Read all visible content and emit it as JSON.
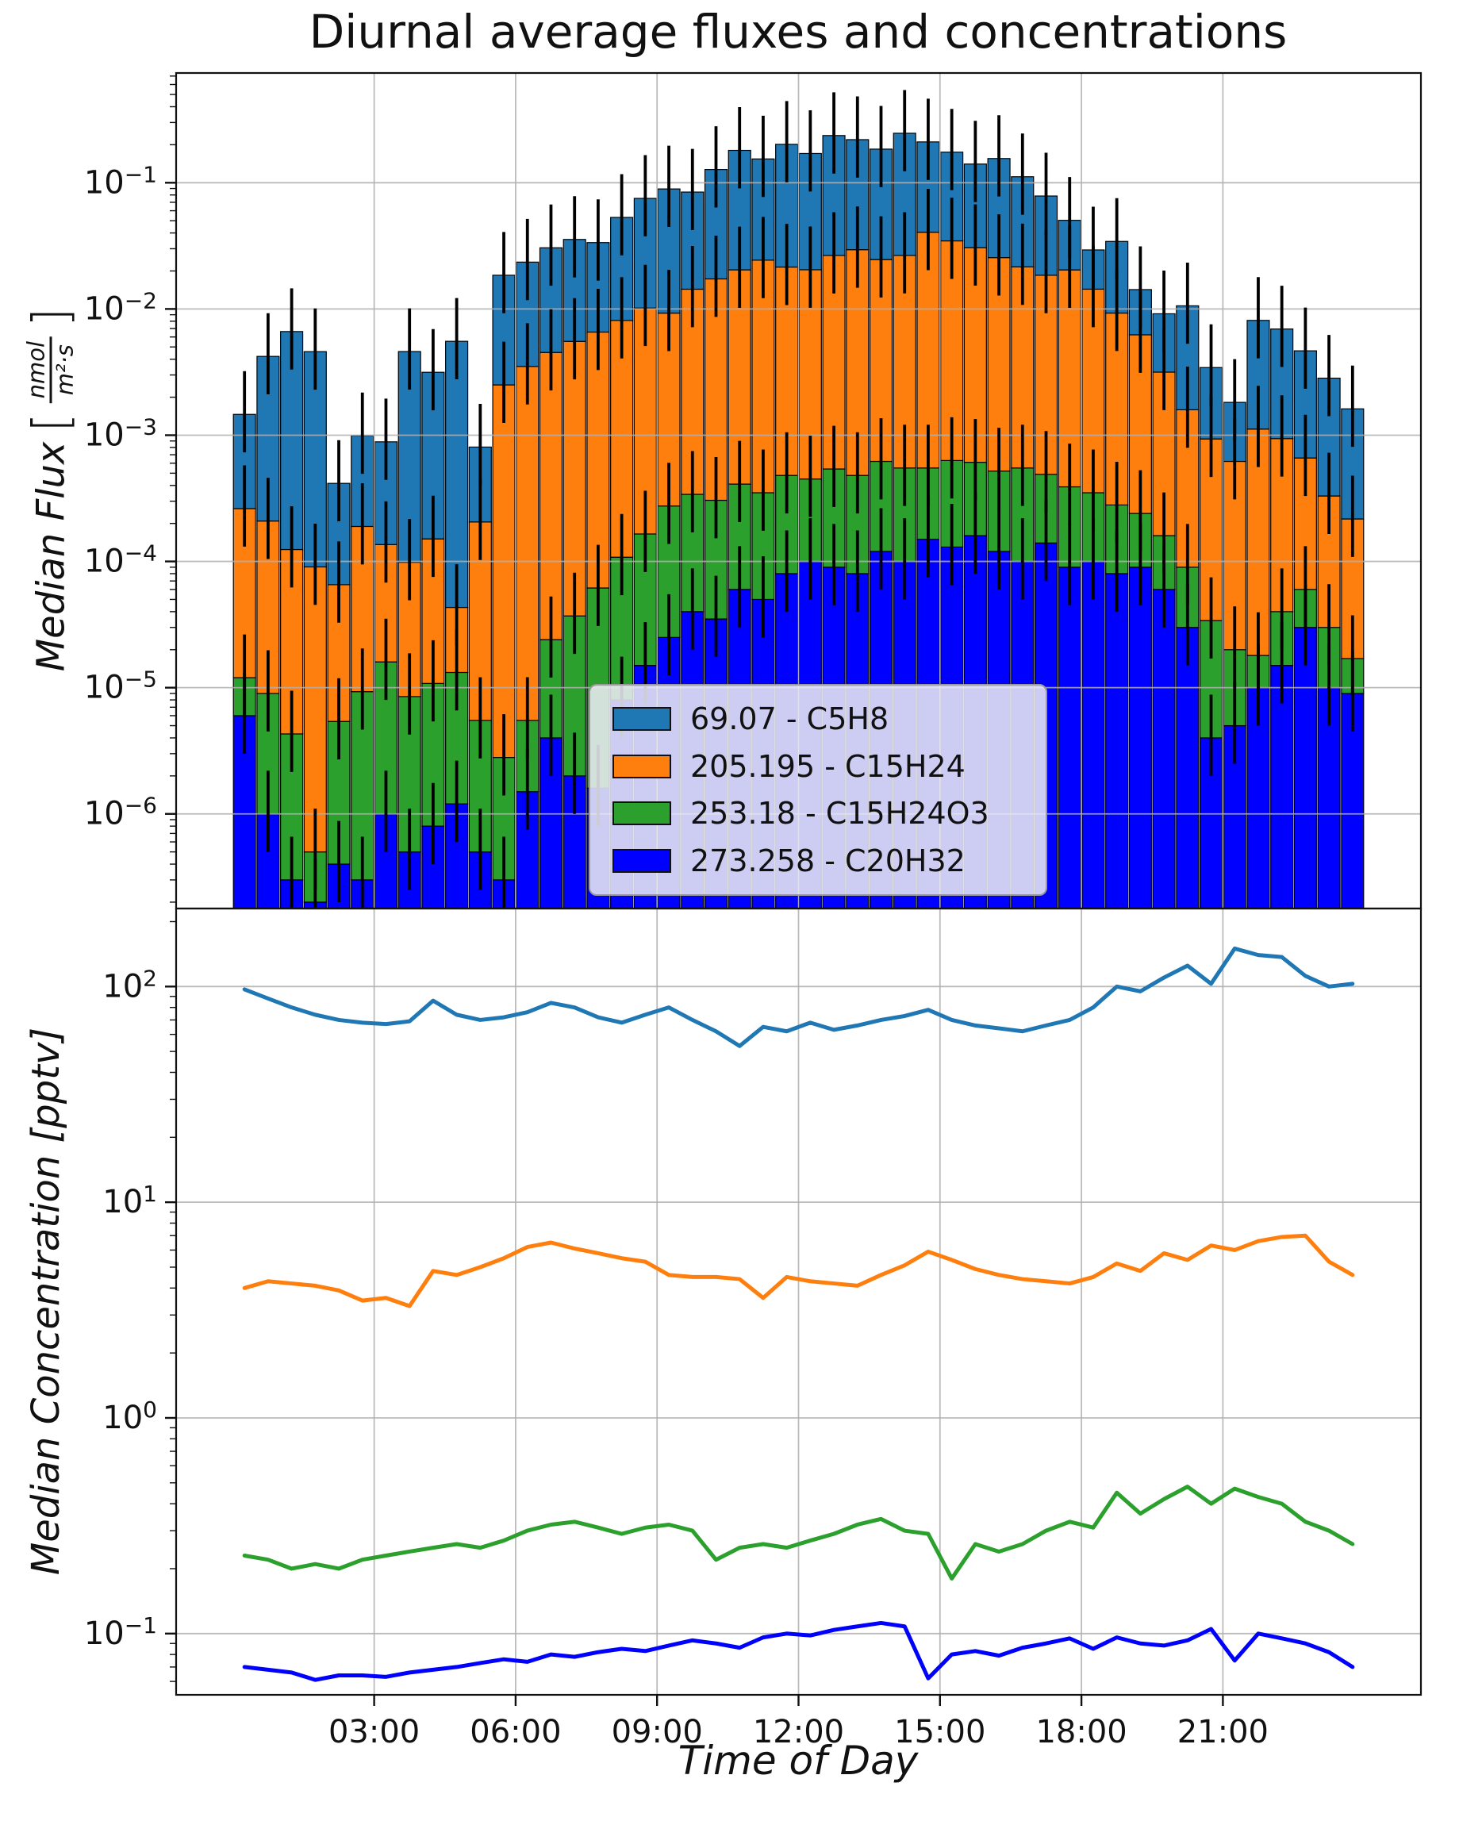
{
  "title": "Diurnal average fluxes and concentrations",
  "axes": {
    "flux_ylabel_prefix": "Median Flux",
    "bracket_open": "[",
    "bracket_close": "]",
    "flux_unit_numerator": "nmol",
    "flux_unit_denominator": "m²·s",
    "conc_ylabel": "Median Concentration [pptv]",
    "xlabel": "Time of Day"
  },
  "legend": {
    "items": [
      {
        "label": "69.07 - C5H8",
        "color": "#1f77b4"
      },
      {
        "label": "205.195 - C15H24",
        "color": "#ff7f0e"
      },
      {
        "label": "253.18 - C15H24O3",
        "color": "#2ca02c"
      },
      {
        "label": "273.258 - C20H32",
        "color": "#0000ff"
      }
    ]
  },
  "chart_data": [
    {
      "type": "bar",
      "stacked": true,
      "y_scale": "log",
      "grid": true,
      "title": "",
      "xlabel": "",
      "ylabel": "Median Flux [nmol/(m²·s)]",
      "ylim": [
        1.78e-07,
        0.74
      ],
      "xlim": [
        -1.2,
        25.2
      ],
      "yticks_exponents": [
        -1,
        -2,
        -3,
        -4,
        -5,
        -6
      ],
      "error_bar_factor": {
        "low": 2.0,
        "high": 2.2
      },
      "stack_order_bottom_to_top": [
        3,
        2,
        1,
        0
      ],
      "x_hours": [
        0.25,
        0.75,
        1.25,
        1.75,
        2.25,
        2.75,
        3.25,
        3.75,
        4.25,
        4.75,
        5.25,
        5.75,
        6.25,
        6.75,
        7.25,
        7.75,
        8.25,
        8.75,
        9.25,
        9.75,
        10.25,
        10.75,
        11.25,
        11.75,
        12.25,
        12.75,
        13.25,
        13.75,
        14.25,
        14.75,
        15.25,
        15.75,
        16.25,
        16.75,
        17.25,
        17.75,
        18.25,
        18.75,
        19.25,
        19.75,
        20.25,
        20.75,
        21.25,
        21.75,
        22.25,
        22.75,
        23.25,
        23.75
      ],
      "series": [
        {
          "name": "69.07 - C5H8",
          "color": "#1f77b4",
          "values": [
            0.0012,
            0.004,
            0.0065,
            0.0045,
            0.00035,
            0.0008,
            0.00075,
            0.0045,
            0.003,
            0.0055,
            0.0006,
            0.016,
            0.02,
            0.026,
            0.03,
            0.027,
            0.045,
            0.065,
            0.08,
            0.07,
            0.11,
            0.16,
            0.13,
            0.18,
            0.15,
            0.21,
            0.19,
            0.16,
            0.22,
            0.17,
            0.14,
            0.11,
            0.13,
            0.09,
            0.06,
            0.03,
            0.015,
            0.025,
            0.008,
            0.006,
            0.009,
            0.0025,
            0.0012,
            0.007,
            0.006,
            0.004,
            0.0025,
            0.0014
          ]
        },
        {
          "name": "205.195 - C15H24",
          "color": "#ff7f0e",
          "values": [
            0.00025,
            0.0002,
            0.00012,
            9e-05,
            6e-05,
            0.00018,
            0.00012,
            9e-05,
            0.00014,
            3e-05,
            0.0002,
            0.0025,
            0.0035,
            0.0045,
            0.0055,
            0.0065,
            0.008,
            0.01,
            0.009,
            0.014,
            0.017,
            0.02,
            0.024,
            0.021,
            0.02,
            0.026,
            0.029,
            0.024,
            0.026,
            0.04,
            0.034,
            0.03,
            0.025,
            0.021,
            0.018,
            0.02,
            0.014,
            0.009,
            0.006,
            0.003,
            0.0015,
            0.0009,
            0.0006,
            0.0011,
            0.0009,
            0.0006,
            0.0003,
            0.0002
          ]
        },
        {
          "name": "253.18 - C15H24O3",
          "color": "#2ca02c",
          "values": [
            6e-06,
            8e-06,
            4e-06,
            3e-07,
            5e-06,
            9e-06,
            1.5e-05,
            8e-06,
            1e-05,
            1.2e-05,
            5e-06,
            2.5e-06,
            4e-06,
            2e-05,
            3.5e-05,
            6e-05,
            0.0001,
            0.00015,
            0.00025,
            0.0003,
            0.00027,
            0.00035,
            0.0003,
            0.0004,
            0.00035,
            0.00045,
            0.0004,
            0.0005,
            0.00045,
            0.0004,
            0.0005,
            0.00045,
            0.0004,
            0.00045,
            0.00035,
            0.0003,
            0.00025,
            0.0002,
            0.00015,
            0.0001,
            6e-05,
            3e-05,
            1.5e-05,
            8e-06,
            2.5e-05,
            3e-05,
            2e-05,
            8e-06
          ]
        },
        {
          "name": "273.258 - C20H32",
          "color": "#0000ff",
          "values": [
            6e-06,
            1e-06,
            3e-07,
            2e-07,
            4e-07,
            3e-07,
            1e-06,
            5e-07,
            8e-07,
            1.2e-06,
            5e-07,
            3e-07,
            1.5e-06,
            4e-06,
            2e-06,
            1.6e-06,
            8e-06,
            1.5e-05,
            2.5e-05,
            4e-05,
            3.5e-05,
            6e-05,
            5e-05,
            8e-05,
            0.0001,
            9e-05,
            8e-05,
            0.00012,
            0.0001,
            0.00015,
            0.00013,
            0.00016,
            0.00012,
            0.0001,
            0.00014,
            9e-05,
            0.0001,
            8e-05,
            9e-05,
            6e-05,
            3e-05,
            4e-06,
            5e-06,
            1e-05,
            1.5e-05,
            3e-05,
            1e-05,
            9e-06
          ]
        }
      ]
    },
    {
      "type": "line",
      "y_scale": "log",
      "grid": true,
      "title": "",
      "xlabel": "Time of Day",
      "ylabel": "Median Concentration [pptv]",
      "ylim": [
        0.052,
        230
      ],
      "xlim": [
        -1.2,
        25.2
      ],
      "yticks_exponents": [
        2,
        1,
        0,
        -1
      ],
      "xticks": {
        "hours": [
          3,
          6,
          9,
          12,
          15,
          18,
          21
        ],
        "labels": [
          "03:00",
          "06:00",
          "09:00",
          "12:00",
          "15:00",
          "18:00",
          "21:00"
        ]
      },
      "x_hours": [
        0.25,
        0.75,
        1.25,
        1.75,
        2.25,
        2.75,
        3.25,
        3.75,
        4.25,
        4.75,
        5.25,
        5.75,
        6.25,
        6.75,
        7.25,
        7.75,
        8.25,
        8.75,
        9.25,
        9.75,
        10.25,
        10.75,
        11.25,
        11.75,
        12.25,
        12.75,
        13.25,
        13.75,
        14.25,
        14.75,
        15.25,
        15.75,
        16.25,
        16.75,
        17.25,
        17.75,
        18.25,
        18.75,
        19.25,
        19.75,
        20.25,
        20.75,
        21.25,
        21.75,
        22.25,
        22.75,
        23.25,
        23.75
      ],
      "series": [
        {
          "name": "69.07 - C5H8",
          "color": "#1f77b4",
          "values": [
            97,
            88,
            80,
            74,
            70,
            68,
            67,
            69,
            86,
            74,
            70,
            72,
            76,
            84,
            80,
            72,
            68,
            74,
            80,
            70,
            62,
            53,
            65,
            62,
            68,
            63,
            66,
            70,
            73,
            78,
            70,
            66,
            64,
            62,
            66,
            70,
            80,
            100,
            95,
            110,
            125,
            103,
            150,
            140,
            137,
            112,
            100,
            103
          ]
        },
        {
          "name": "205.195 - C15H24",
          "color": "#ff7f0e",
          "values": [
            4.0,
            4.3,
            4.2,
            4.1,
            3.9,
            3.5,
            3.6,
            3.3,
            4.8,
            4.6,
            5.0,
            5.5,
            6.2,
            6.5,
            6.1,
            5.8,
            5.5,
            5.3,
            4.6,
            4.5,
            4.5,
            4.4,
            3.6,
            4.5,
            4.3,
            4.2,
            4.1,
            4.6,
            5.1,
            5.9,
            5.4,
            4.9,
            4.6,
            4.4,
            4.3,
            4.2,
            4.5,
            5.2,
            4.8,
            5.8,
            5.4,
            6.3,
            6.0,
            6.6,
            6.9,
            7.0,
            5.3,
            4.6
          ]
        },
        {
          "name": "253.18 - C15H24O3",
          "color": "#2ca02c",
          "values": [
            0.23,
            0.22,
            0.2,
            0.21,
            0.2,
            0.22,
            0.23,
            0.24,
            0.25,
            0.26,
            0.25,
            0.27,
            0.3,
            0.32,
            0.33,
            0.31,
            0.29,
            0.31,
            0.32,
            0.3,
            0.22,
            0.25,
            0.26,
            0.25,
            0.27,
            0.29,
            0.32,
            0.34,
            0.3,
            0.29,
            0.18,
            0.26,
            0.24,
            0.26,
            0.3,
            0.33,
            0.31,
            0.45,
            0.36,
            0.42,
            0.48,
            0.4,
            0.47,
            0.43,
            0.4,
            0.33,
            0.3,
            0.26
          ]
        },
        {
          "name": "273.258 - C20H32",
          "color": "#0000ff",
          "values": [
            0.07,
            0.068,
            0.066,
            0.061,
            0.064,
            0.064,
            0.063,
            0.066,
            0.068,
            0.07,
            0.073,
            0.076,
            0.074,
            0.08,
            0.078,
            0.082,
            0.085,
            0.083,
            0.088,
            0.093,
            0.09,
            0.086,
            0.096,
            0.1,
            0.098,
            0.104,
            0.108,
            0.112,
            0.108,
            0.062,
            0.08,
            0.083,
            0.079,
            0.086,
            0.09,
            0.095,
            0.085,
            0.096,
            0.09,
            0.088,
            0.093,
            0.105,
            0.075,
            0.1,
            0.095,
            0.09,
            0.082,
            0.07
          ]
        }
      ]
    }
  ]
}
